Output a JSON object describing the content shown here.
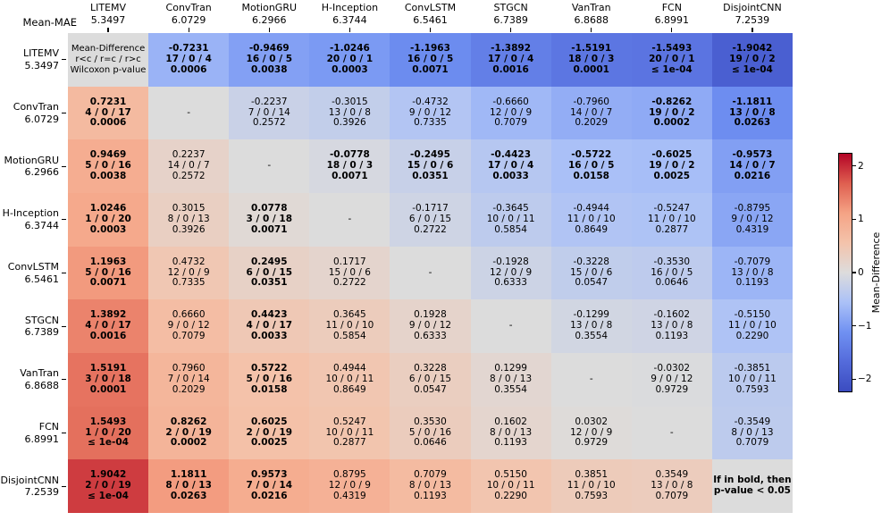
{
  "corner_label": "Mean-MAE",
  "dash": "-",
  "colormap": {
    "name": "coolwarm",
    "anchors": [
      "#3b4cc0",
      "#546bdb",
      "#7091f2",
      "#abc1f7",
      "#dddcdc",
      "#f4c3ab",
      "#f5a385",
      "#df5f50",
      "#b40426"
    ],
    "neutral": "#dcdcdc"
  },
  "chart_data": {
    "type": "heatmap",
    "description": "Pairwise multi-comparison matrix of Mean-MAE differences between models; each cell shows Mean-Difference, win/tie/loss counts (r<c / r=c / r>c) and Wilcoxon p-value; bold means p-value < 0.05",
    "corner_label": "Mean-MAE",
    "models": [
      {
        "name": "LITEMV",
        "mae": "5.3497"
      },
      {
        "name": "ConvTran",
        "mae": "6.0729"
      },
      {
        "name": "MotionGRU",
        "mae": "6.2966"
      },
      {
        "name": "H-Inception",
        "mae": "6.3744"
      },
      {
        "name": "ConvLSTM",
        "mae": "6.5461"
      },
      {
        "name": "STGCN",
        "mae": "6.7389"
      },
      {
        "name": "VanTran",
        "mae": "6.8688"
      },
      {
        "name": "FCN",
        "mae": "6.8991"
      },
      {
        "name": "DisjointCNN",
        "mae": "7.2539"
      }
    ],
    "cell_line_meaning": [
      "Mean-Difference",
      "r<c / r=c / r>c",
      "Wilcoxon p-value"
    ],
    "note": [
      "If in bold, then",
      "p-value < 0.05"
    ],
    "dash": "-",
    "bold_rule": "bold if p-value < 0.05",
    "cells": [
      [
        null,
        {
          "d": "-0.7231",
          "w": "17 / 0 / 4",
          "p": "0.0006"
        },
        {
          "d": "-0.9469",
          "w": "16 / 0 / 5",
          "p": "0.0038"
        },
        {
          "d": "-1.0246",
          "w": "20 / 0 / 1",
          "p": "0.0003"
        },
        {
          "d": "-1.1963",
          "w": "16 / 0 / 5",
          "p": "0.0071"
        },
        {
          "d": "-1.3892",
          "w": "17 / 0 / 4",
          "p": "0.0016"
        },
        {
          "d": "-1.5191",
          "w": "18 / 0 / 3",
          "p": "0.0001"
        },
        {
          "d": "-1.5493",
          "w": "20 / 0 / 1",
          "p": "≤ 1e-04"
        },
        {
          "d": "-1.9042",
          "w": "19 / 0 / 2",
          "p": "≤ 1e-04"
        }
      ],
      [
        {
          "d": "0.7231",
          "w": "4 / 0 / 17",
          "p": "0.0006"
        },
        null,
        {
          "d": "-0.2237",
          "w": "7 / 0 / 14",
          "p": "0.2572"
        },
        {
          "d": "-0.3015",
          "w": "13 / 0 / 8",
          "p": "0.3926"
        },
        {
          "d": "-0.4732",
          "w": "9 / 0 / 12",
          "p": "0.7335"
        },
        {
          "d": "-0.6660",
          "w": "12 / 0 / 9",
          "p": "0.7079"
        },
        {
          "d": "-0.7960",
          "w": "14 / 0 / 7",
          "p": "0.2029"
        },
        {
          "d": "-0.8262",
          "w": "19 / 0 / 2",
          "p": "0.0002"
        },
        {
          "d": "-1.1811",
          "w": "13 / 0 / 8",
          "p": "0.0263"
        }
      ],
      [
        {
          "d": "0.9469",
          "w": "5 / 0 / 16",
          "p": "0.0038"
        },
        {
          "d": "0.2237",
          "w": "14 / 0 / 7",
          "p": "0.2572"
        },
        null,
        {
          "d": "-0.0778",
          "w": "18 / 0 / 3",
          "p": "0.0071"
        },
        {
          "d": "-0.2495",
          "w": "15 / 0 / 6",
          "p": "0.0351"
        },
        {
          "d": "-0.4423",
          "w": "17 / 0 / 4",
          "p": "0.0033"
        },
        {
          "d": "-0.5722",
          "w": "16 / 0 / 5",
          "p": "0.0158"
        },
        {
          "d": "-0.6025",
          "w": "19 / 0 / 2",
          "p": "0.0025"
        },
        {
          "d": "-0.9573",
          "w": "14 / 0 / 7",
          "p": "0.0216"
        }
      ],
      [
        {
          "d": "1.0246",
          "w": "1 / 0 / 20",
          "p": "0.0003"
        },
        {
          "d": "0.3015",
          "w": "8 / 0 / 13",
          "p": "0.3926"
        },
        {
          "d": "0.0778",
          "w": "3 / 0 / 18",
          "p": "0.0071"
        },
        null,
        {
          "d": "-0.1717",
          "w": "6 / 0 / 15",
          "p": "0.2722"
        },
        {
          "d": "-0.3645",
          "w": "10 / 0 / 11",
          "p": "0.5854"
        },
        {
          "d": "-0.4944",
          "w": "11 / 0 / 10",
          "p": "0.8649"
        },
        {
          "d": "-0.5247",
          "w": "11 / 0 / 10",
          "p": "0.2877"
        },
        {
          "d": "-0.8795",
          "w": "9 / 0 / 12",
          "p": "0.4319"
        }
      ],
      [
        {
          "d": "1.1963",
          "w": "5 / 0 / 16",
          "p": "0.0071"
        },
        {
          "d": "0.4732",
          "w": "12 / 0 / 9",
          "p": "0.7335"
        },
        {
          "d": "0.2495",
          "w": "6 / 0 / 15",
          "p": "0.0351"
        },
        {
          "d": "0.1717",
          "w": "15 / 0 / 6",
          "p": "0.2722"
        },
        null,
        {
          "d": "-0.1928",
          "w": "12 / 0 / 9",
          "p": "0.6333"
        },
        {
          "d": "-0.3228",
          "w": "15 / 0 / 6",
          "p": "0.0547"
        },
        {
          "d": "-0.3530",
          "w": "16 / 0 / 5",
          "p": "0.0646"
        },
        {
          "d": "-0.7079",
          "w": "13 / 0 / 8",
          "p": "0.1193"
        }
      ],
      [
        {
          "d": "1.3892",
          "w": "4 / 0 / 17",
          "p": "0.0016"
        },
        {
          "d": "0.6660",
          "w": "9 / 0 / 12",
          "p": "0.7079"
        },
        {
          "d": "0.4423",
          "w": "4 / 0 / 17",
          "p": "0.0033"
        },
        {
          "d": "0.3645",
          "w": "11 / 0 / 10",
          "p": "0.5854"
        },
        {
          "d": "0.1928",
          "w": "9 / 0 / 12",
          "p": "0.6333"
        },
        null,
        {
          "d": "-0.1299",
          "w": "13 / 0 / 8",
          "p": "0.3554"
        },
        {
          "d": "-0.1602",
          "w": "13 / 0 / 8",
          "p": "0.1193"
        },
        {
          "d": "-0.5150",
          "w": "11 / 0 / 10",
          "p": "0.2290"
        }
      ],
      [
        {
          "d": "1.5191",
          "w": "3 / 0 / 18",
          "p": "0.0001"
        },
        {
          "d": "0.7960",
          "w": "7 / 0 / 14",
          "p": "0.2029"
        },
        {
          "d": "0.5722",
          "w": "5 / 0 / 16",
          "p": "0.0158"
        },
        {
          "d": "0.4944",
          "w": "10 / 0 / 11",
          "p": "0.8649"
        },
        {
          "d": "0.3228",
          "w": "6 / 0 / 15",
          "p": "0.0547"
        },
        {
          "d": "0.1299",
          "w": "8 / 0 / 13",
          "p": "0.3554"
        },
        null,
        {
          "d": "-0.0302",
          "w": "9 / 0 / 12",
          "p": "0.9729"
        },
        {
          "d": "-0.3851",
          "w": "10 / 0 / 11",
          "p": "0.7593"
        }
      ],
      [
        {
          "d": "1.5493",
          "w": "1 / 0 / 20",
          "p": "≤ 1e-04"
        },
        {
          "d": "0.8262",
          "w": "2 / 0 / 19",
          "p": "0.0002"
        },
        {
          "d": "0.6025",
          "w": "2 / 0 / 19",
          "p": "0.0025"
        },
        {
          "d": "0.5247",
          "w": "10 / 0 / 11",
          "p": "0.2877"
        },
        {
          "d": "0.3530",
          "w": "5 / 0 / 16",
          "p": "0.0646"
        },
        {
          "d": "0.1602",
          "w": "8 / 0 / 13",
          "p": "0.1193"
        },
        {
          "d": "0.0302",
          "w": "12 / 0 / 9",
          "p": "0.9729"
        },
        null,
        {
          "d": "-0.3549",
          "w": "8 / 0 / 13",
          "p": "0.7079"
        }
      ],
      [
        {
          "d": "1.9042",
          "w": "2 / 0 / 19",
          "p": "≤ 1e-04"
        },
        {
          "d": "1.1811",
          "w": "8 / 0 / 13",
          "p": "0.0263"
        },
        {
          "d": "0.9573",
          "w": "7 / 0 / 14",
          "p": "0.0216"
        },
        {
          "d": "0.8795",
          "w": "12 / 0 / 9",
          "p": "0.4319"
        },
        {
          "d": "0.7079",
          "w": "8 / 0 / 13",
          "p": "0.1193"
        },
        {
          "d": "0.5150",
          "w": "10 / 0 / 11",
          "p": "0.2290"
        },
        {
          "d": "0.3851",
          "w": "11 / 0 / 10",
          "p": "0.7593"
        },
        {
          "d": "0.3549",
          "w": "13 / 0 / 8",
          "p": "0.7079"
        },
        null
      ]
    ],
    "colorbar": {
      "label": "Mean-Difference",
      "vmin": -2.25,
      "vmax": 2.25,
      "tick_values": [
        2,
        1,
        0,
        -1,
        -2
      ],
      "tick_labels": [
        "2",
        "1",
        "0",
        "−1",
        "−2"
      ]
    }
  }
}
